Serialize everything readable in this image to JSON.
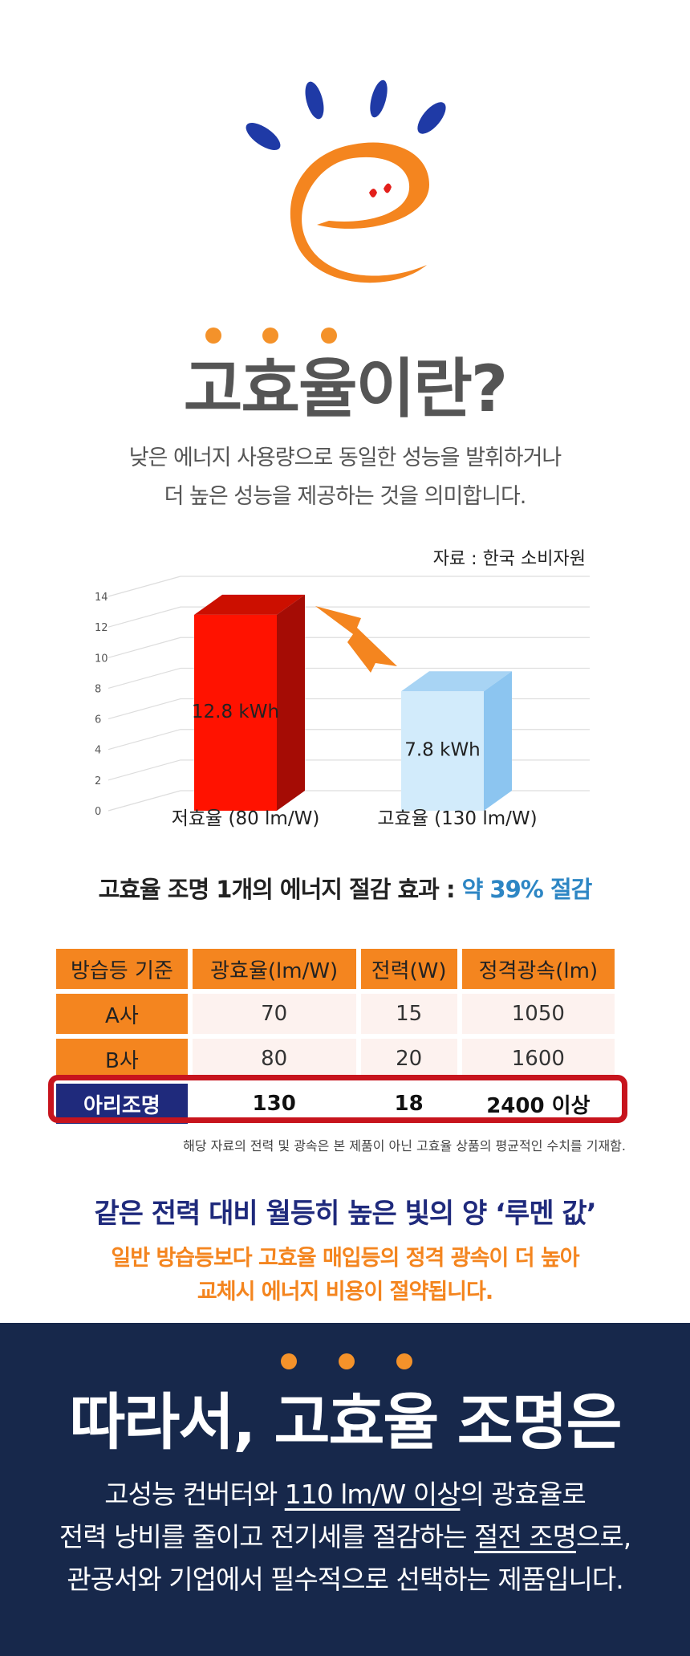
{
  "title": "고효율이란?",
  "intro": {
    "line1": "낮은 에너지 사용량으로 동일한 성능을 발휘하거나",
    "line2": "더 높은 성능을 제공하는 것을 의미합니다."
  },
  "chart_data": {
    "type": "bar",
    "source": "자료 : 한국 소비자원",
    "categories": [
      "저효율 (80 lm/W)",
      "고효율 (130 lm/W)"
    ],
    "values": [
      12.8,
      7.8
    ],
    "value_labels": [
      "12.8 kWh",
      "7.8 kWh"
    ],
    "yticks": [
      0,
      2,
      4,
      6,
      8,
      10,
      12,
      14
    ],
    "ylim": [
      0,
      14
    ],
    "colors": {
      "low_front": "#ff1200",
      "low_top": "#cc0f00",
      "low_side": "#a50c05",
      "high_front": "#d2ebfb",
      "high_top": "#a8d4f4",
      "high_side": "#8cc5f0",
      "arrow": "#f4851f"
    }
  },
  "savings": {
    "prefix": "고효율 조명 1개의 에너지 절감 효과 : ",
    "highlight": "약 39% 절감"
  },
  "table": {
    "headers": [
      "방습등 기준",
      "광효율(lm/W)",
      "전력(W)",
      "정격광속(lm)"
    ],
    "rows": [
      [
        "A사",
        "70",
        "15",
        "1050"
      ],
      [
        "B사",
        "80",
        "20",
        "1600"
      ]
    ],
    "highlight_row": [
      "아리조명",
      "130",
      "18",
      "2400 이상"
    ]
  },
  "note": "해당 자료의 전력 및 광속은 본 제품이 아닌 고효율 상품의 평균적인 수치를 기재함.",
  "subhead": "같은 전력 대비 월등히 높은 빛의 양 ‘루멘 값’",
  "orange": {
    "line1": "일반 방습등보다 고효율 매입등의 정격 광속이 더 높아",
    "line2": "교체시 에너지 비용이 절약됩니다."
  },
  "bottom": {
    "title": "따라서, 고효율 조명은",
    "line1_a": "고성능 컨버터와 ",
    "line1_u": "110 lm/W 이상",
    "line1_b": "의 광효율로",
    "line2_a": "전력 낭비를 줄이고 전기세를 절감하는 ",
    "line2_u": "절전 조명",
    "line2_b": "으로,",
    "line3": "관공서와 기업에서 필수적으로 선택하는 제품입니다."
  },
  "icons": [
    "sun-logo-icon",
    "lightning-arrow-icon"
  ]
}
